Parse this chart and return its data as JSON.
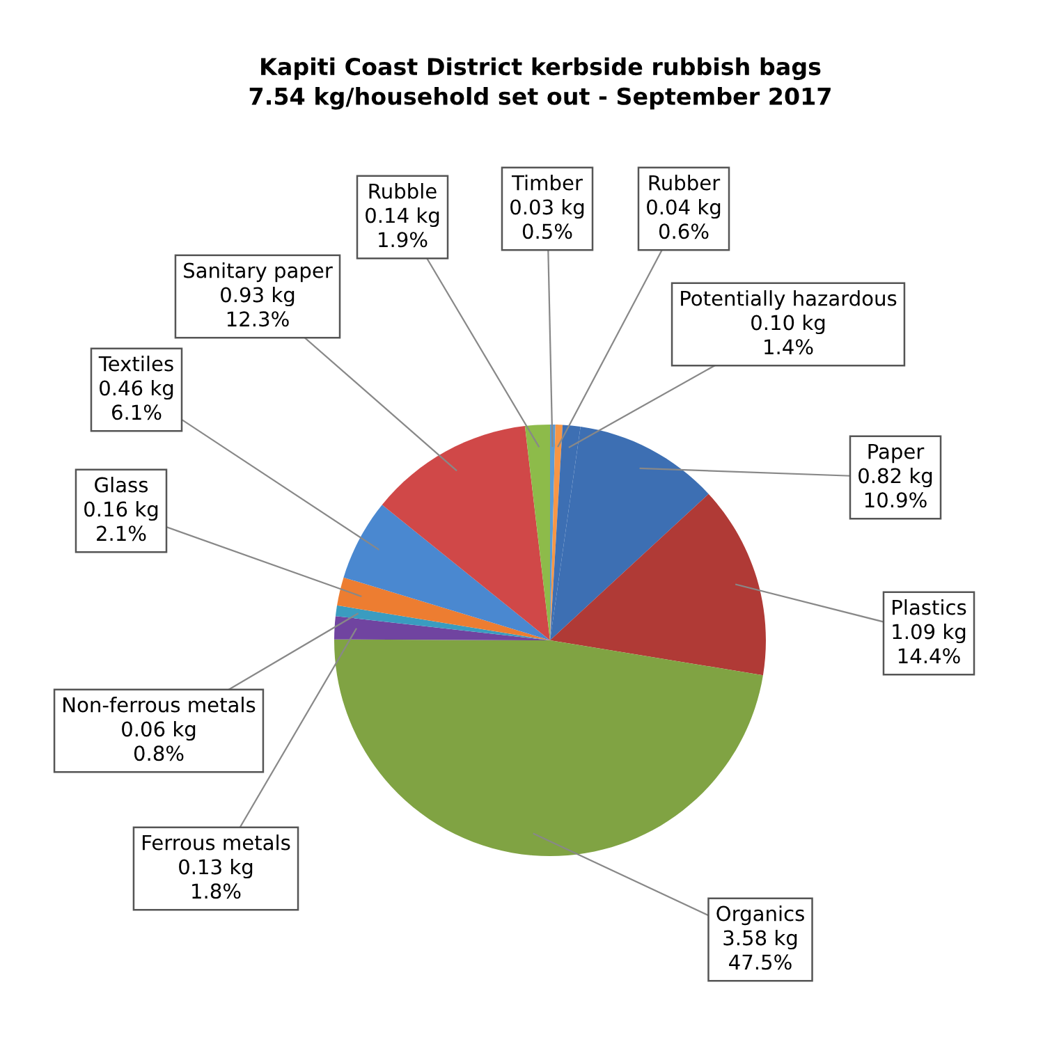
{
  "chart_data": {
    "type": "pie",
    "title": "Kapiti Coast District kerbside rubbish bags\n7.54 kg/household set out - September 2017",
    "categories": [
      "Timber",
      "Rubber",
      "Potentially hazardous",
      "Paper",
      "Plastics",
      "Organics",
      "Ferrous metals",
      "Non-ferrous metals",
      "Glass",
      "Textiles",
      "Sanitary paper",
      "Rubble"
    ],
    "values": [
      0.03,
      0.04,
      0.1,
      0.82,
      1.09,
      3.58,
      0.13,
      0.06,
      0.16,
      0.46,
      0.93,
      0.14
    ],
    "value_labels": [
      "0.03 kg\n0.5%",
      "0.04 kg\n0.6%",
      "0.10 kg\n1.4%",
      "0.82 kg\n10.9%",
      "1.09 kg\n14.4%",
      "3.58 kg\n47.5%",
      "0.13 kg\n1.8%",
      "0.06 kg\n0.8%",
      "0.16 kg\n2.1%",
      "0.46 kg\n6.1%",
      "0.93 kg\n12.3%",
      "0.14 kg\n1.9%"
    ],
    "colors": [
      "#5b9bd5",
      "#f79646",
      "#3d6fb3",
      "#3d6fb3",
      "#b03a36",
      "#80a343",
      "#7044a0",
      "#3a9cc0",
      "#ed7d31",
      "#4a88d0",
      "#d04848",
      "#8dbb4a"
    ]
  }
}
